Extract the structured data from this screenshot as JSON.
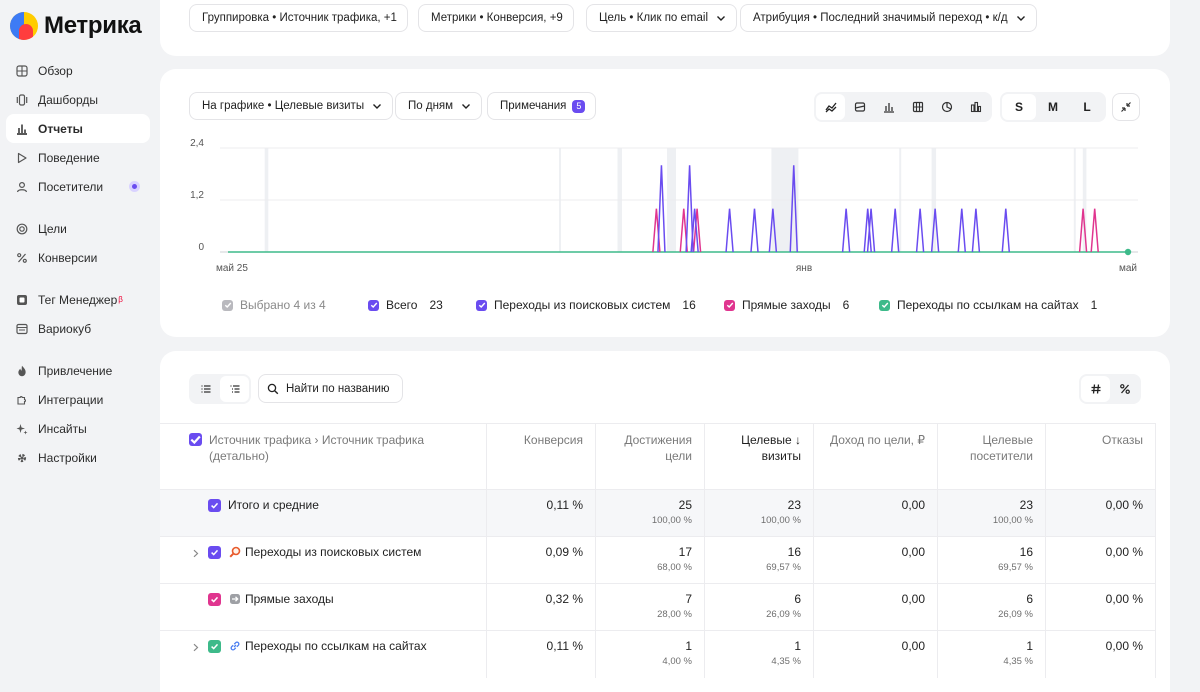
{
  "app": {
    "logo_text": "Метрика"
  },
  "sidebar": {
    "items": [
      {
        "label": "Обзор",
        "icon": "grid-icon"
      },
      {
        "label": "Дашборды",
        "icon": "dashboards-icon"
      },
      {
        "label": "Отчеты",
        "icon": "bar-chart-icon",
        "active": true
      },
      {
        "label": "Поведение",
        "icon": "play-icon"
      },
      {
        "label": "Посетители",
        "icon": "user-icon"
      },
      {
        "label": "Цели",
        "icon": "target-icon"
      },
      {
        "label": "Конверсии",
        "icon": "percent-icon"
      },
      {
        "label": "Тег Менеджер",
        "beta": "β",
        "icon": "tag-manager-icon"
      },
      {
        "label": "Вариокуб",
        "icon": "variocube-icon"
      },
      {
        "label": "Привлечение",
        "icon": "flame-icon"
      },
      {
        "label": "Интеграции",
        "icon": "puzzle-icon"
      },
      {
        "label": "Инсайты",
        "icon": "sparkle-icon"
      },
      {
        "label": "Настройки",
        "icon": "gear-icon"
      }
    ]
  },
  "filters": {
    "grouping": "Группировка • Источник трафика, +1",
    "metrics": "Метрики • Конверсия, +9",
    "goal": "Цель • Клик по email",
    "attribution": "Атрибуция • Последний значимый переход • к/д"
  },
  "chart_toolbar": {
    "on_chart": "На графике • Целевые визиты",
    "period": "По дням",
    "notes_label": "Примечания",
    "notes_count": "5",
    "sizes": [
      "S",
      "M",
      "L"
    ],
    "selected_size": "S"
  },
  "chart_data": {
    "type": "line",
    "y_ticks": [
      "2,4",
      "1,2",
      "0"
    ],
    "ylim": [
      0,
      2.4
    ],
    "x_ticks": [
      "май 25",
      "янв",
      "май"
    ],
    "series": [
      {
        "name": "Всего",
        "color": "#6a4cf0"
      },
      {
        "name": "Переходы из поисковых систем",
        "color": "#6a4cf0"
      },
      {
        "name": "Прямые заходы",
        "color": "#e0358f"
      },
      {
        "name": "Переходы по ссылкам на сайтах",
        "color": "#3dba8a"
      }
    ],
    "purple_spikes": [
      {
        "t": 0.4816,
        "v": 2.0
      },
      {
        "t": 0.5129,
        "v": 2.0
      },
      {
        "t": 0.5185,
        "v": 1.0
      },
      {
        "t": 0.5573,
        "v": 1.0
      },
      {
        "t": 0.585,
        "v": 1.0
      },
      {
        "t": 0.6054,
        "v": 1.0
      },
      {
        "t": 0.6286,
        "v": 2.0
      },
      {
        "t": 0.6868,
        "v": 1.0
      },
      {
        "t": 0.7145,
        "v": 1.0
      },
      {
        "t": 0.7108,
        "v": 1.0
      },
      {
        "t": 0.7413,
        "v": 1.0
      },
      {
        "t": 0.769,
        "v": 1.0
      },
      {
        "t": 0.7857,
        "v": 1.0
      },
      {
        "t": 0.8153,
        "v": 1.0
      },
      {
        "t": 0.831,
        "v": 1.0
      },
      {
        "t": 0.8642,
        "v": 1.0
      }
    ],
    "pink_spikes": [
      {
        "t": 0.476,
        "v": 1.0
      },
      {
        "t": 0.5064,
        "v": 1.0
      },
      {
        "t": 0.5212,
        "v": 1.0
      },
      {
        "t": 0.9501,
        "v": 1.0
      },
      {
        "t": 0.963,
        "v": 1.0
      }
    ],
    "green_end_value": 0
  },
  "legend": {
    "selected": "Выбрано 4 из 4",
    "items": [
      {
        "label": "Всего",
        "value": "23",
        "color": "#6a4cf0"
      },
      {
        "label": "Переходы из поисковых систем",
        "value": "16",
        "color": "#6a4cf0"
      },
      {
        "label": "Прямые заходы",
        "value": "6",
        "color": "#e0358f"
      },
      {
        "label": "Переходы по ссылкам на сайтах",
        "value": "1",
        "color": "#3dba8a"
      }
    ]
  },
  "table": {
    "search_placeholder": "Найти по названию",
    "dimension_header_1": "Источник трафика › Источник трафика",
    "dimension_header_2": "(детально)",
    "columns": [
      {
        "l1": "Конверсия",
        "l2": ""
      },
      {
        "l1": "Достижения",
        "l2": "цели"
      },
      {
        "l1": "Целевые ↓",
        "l2": "визиты",
        "sorted": true
      },
      {
        "l1": "Доход по цели, ₽",
        "l2": ""
      },
      {
        "l1": "Целевые",
        "l2": "посетители"
      },
      {
        "l1": "Отказы",
        "l2": ""
      }
    ],
    "rows": [
      {
        "name": "Итого и средние",
        "total": true,
        "color": "#6a4cf0",
        "icon": "",
        "cells": [
          [
            "0,11 %",
            ""
          ],
          [
            "25",
            "100,00 %"
          ],
          [
            "23",
            "100,00 %"
          ],
          [
            "0,00",
            ""
          ],
          [
            "23",
            "100,00 %"
          ],
          [
            "0,00 %",
            ""
          ]
        ]
      },
      {
        "name": "Переходы из поисковых систем",
        "expandable": true,
        "color": "#6a4cf0",
        "icon": "search-source-icon",
        "cells": [
          [
            "0,09 %",
            ""
          ],
          [
            "17",
            "68,00 %"
          ],
          [
            "16",
            "69,57 %"
          ],
          [
            "0,00",
            ""
          ],
          [
            "16",
            "69,57 %"
          ],
          [
            "0,00 %",
            ""
          ]
        ]
      },
      {
        "name": "Прямые заходы",
        "color": "#e0358f",
        "icon": "direct-entry-icon",
        "cells": [
          [
            "0,32 %",
            ""
          ],
          [
            "7",
            "28,00 %"
          ],
          [
            "6",
            "26,09 %"
          ],
          [
            "0,00",
            ""
          ],
          [
            "6",
            "26,09 %"
          ],
          [
            "0,00 %",
            ""
          ]
        ]
      },
      {
        "name": "Переходы по ссылкам на сайтах",
        "expandable": true,
        "color": "#3dba8a",
        "icon": "link-icon",
        "cells": [
          [
            "0,11 %",
            ""
          ],
          [
            "1",
            "4,00 %"
          ],
          [
            "1",
            "4,35 %"
          ],
          [
            "0,00",
            ""
          ],
          [
            "1",
            "4,35 %"
          ],
          [
            "0,00 %",
            ""
          ]
        ]
      }
    ]
  }
}
